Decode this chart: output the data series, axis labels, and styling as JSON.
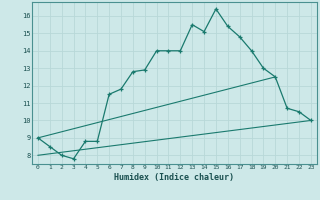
{
  "xlabel": "Humidex (Indice chaleur)",
  "background_color": "#cde8e8",
  "grid_color": "#b8d8d8",
  "line_color": "#1a7a6e",
  "xlim": [
    -0.5,
    23.5
  ],
  "ylim": [
    7.5,
    16.8
  ],
  "xticks": [
    0,
    1,
    2,
    3,
    4,
    5,
    6,
    7,
    8,
    9,
    10,
    11,
    12,
    13,
    14,
    15,
    16,
    17,
    18,
    19,
    20,
    21,
    22,
    23
  ],
  "yticks": [
    8,
    9,
    10,
    11,
    12,
    13,
    14,
    15,
    16
  ],
  "main_x": [
    0,
    1,
    2,
    3,
    4,
    5,
    6,
    7,
    8,
    9,
    10,
    11,
    12,
    13,
    14,
    15,
    16,
    17,
    18,
    19,
    20,
    21,
    22,
    23
  ],
  "main_y": [
    9.0,
    8.5,
    8.0,
    7.8,
    8.8,
    8.8,
    11.5,
    11.8,
    12.8,
    12.9,
    14.0,
    14.0,
    14.0,
    15.5,
    15.1,
    16.4,
    15.4,
    14.8,
    14.0,
    13.0,
    12.5,
    10.7,
    10.5,
    10.0
  ],
  "line1_x": [
    0,
    20
  ],
  "line1_y": [
    9.0,
    12.5
  ],
  "line2_x": [
    0,
    23
  ],
  "line2_y": [
    8.0,
    10.0
  ]
}
